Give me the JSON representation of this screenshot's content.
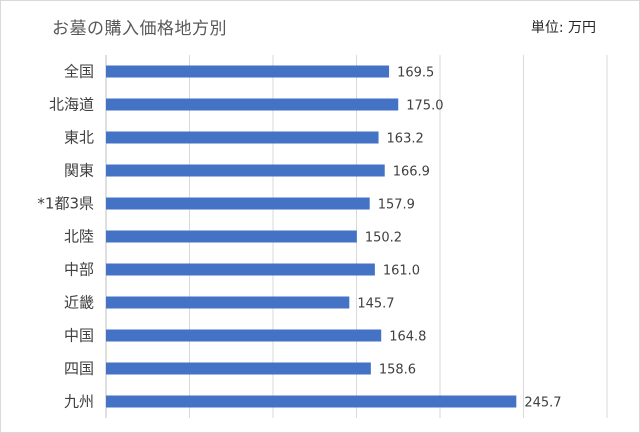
{
  "chart_data": {
    "type": "bar",
    "orientation": "horizontal",
    "title": "お墓の購入価格地方別",
    "unit_label": "単位: 万円",
    "categories": [
      "全国",
      "北海道",
      "東北",
      "関東",
      "*1都3県",
      "北陸",
      "中部",
      "近畿",
      "中国",
      "四国",
      "九州"
    ],
    "values": [
      169.5,
      175.0,
      163.2,
      166.9,
      157.9,
      150.2,
      161.0,
      145.7,
      164.8,
      158.6,
      245.7
    ],
    "value_labels": [
      "169.5",
      "175.0",
      "163.2",
      "166.9",
      "157.9",
      "150.2",
      "161.0",
      "145.7",
      "164.8",
      "158.6",
      "245.7"
    ],
    "xlim": [
      0,
      300
    ],
    "grid": true,
    "bar_color": "#4472c4"
  }
}
